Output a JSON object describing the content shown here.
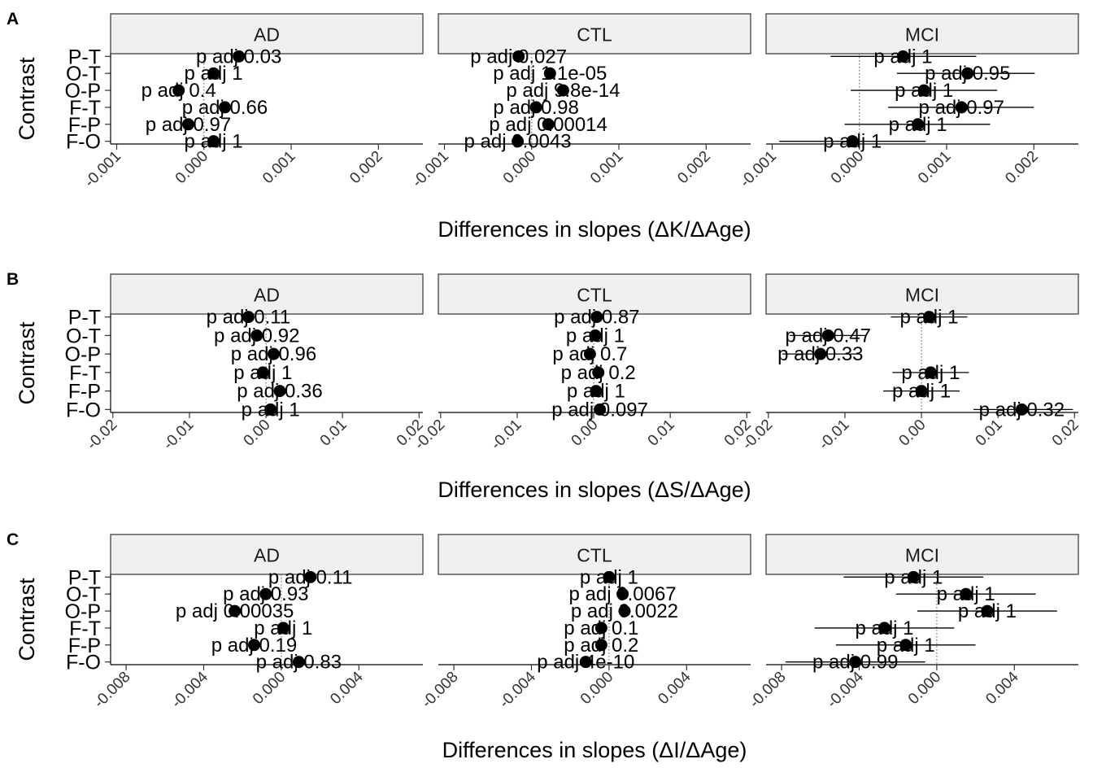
{
  "y_title": "Contrast",
  "contrasts": [
    "P-T",
    "O-T",
    "O-P",
    "F-T",
    "F-P",
    "F-O"
  ],
  "facets": [
    "AD",
    "CTL",
    "MCI"
  ],
  "chart_data": [
    {
      "panel_label": "A",
      "type": "scatter",
      "xlabel": "Differences in slopes (ΔK/ΔAge)",
      "xlim": [
        -0.00107,
        0.00251
      ],
      "xticks": [
        -0.001,
        0.0,
        0.001,
        0.002
      ],
      "xtick_labels": [
        "-0.001",
        "0.000",
        "0.001",
        "0.002"
      ],
      "facets": [
        {
          "name": "AD",
          "points": [
            {
              "contrast": "P-T",
              "x": 0.0004,
              "lo": null,
              "hi": null,
              "label": "p adj 0.03"
            },
            {
              "contrast": "O-T",
              "x": 0.00011,
              "lo": null,
              "hi": null,
              "label": "p adj 1"
            },
            {
              "contrast": "O-P",
              "x": -0.00029,
              "lo": null,
              "hi": null,
              "label": "p adj 0.4"
            },
            {
              "contrast": "F-T",
              "x": 0.00024,
              "lo": null,
              "hi": null,
              "label": "p adj 0.66"
            },
            {
              "contrast": "F-P",
              "x": -0.00018,
              "lo": null,
              "hi": null,
              "label": "p adj 0.97"
            },
            {
              "contrast": "F-O",
              "x": 0.00011,
              "lo": null,
              "hi": null,
              "label": "p adj 1"
            }
          ]
        },
        {
          "name": "CTL",
          "points": [
            {
              "contrast": "P-T",
              "x": -0.00015,
              "lo": null,
              "hi": null,
              "label": "p adj 0.027"
            },
            {
              "contrast": "O-T",
              "x": 0.00021,
              "lo": null,
              "hi": null,
              "label": "p adj 1.1e-05"
            },
            {
              "contrast": "O-P",
              "x": 0.00036,
              "lo": null,
              "hi": null,
              "label": "p adj 9.8e-14"
            },
            {
              "contrast": "F-T",
              "x": 5e-05,
              "lo": null,
              "hi": null,
              "label": "p adj 0.98"
            },
            {
              "contrast": "F-P",
              "x": 0.00019,
              "lo": null,
              "hi": null,
              "label": "p adj 0.00014"
            },
            {
              "contrast": "F-O",
              "x": -0.00016,
              "lo": null,
              "hi": null,
              "label": "p adj 0.0043"
            }
          ]
        },
        {
          "name": "MCI",
          "points": [
            {
              "contrast": "P-T",
              "x": 0.0005,
              "lo": -0.00033,
              "hi": 0.00134,
              "label": "p adj 1"
            },
            {
              "contrast": "O-T",
              "x": 0.00124,
              "lo": 0.00043,
              "hi": 0.00201,
              "label": "p adj 0.95"
            },
            {
              "contrast": "O-P",
              "x": 0.00074,
              "lo": -0.0001,
              "hi": 0.00158,
              "label": "p adj 1"
            },
            {
              "contrast": "F-T",
              "x": 0.00117,
              "lo": 0.00033,
              "hi": 0.002,
              "label": "p adj 0.97"
            },
            {
              "contrast": "F-P",
              "x": 0.00067,
              "lo": -0.00017,
              "hi": 0.0015,
              "label": "p adj 1"
            },
            {
              "contrast": "F-O",
              "x": -8e-05,
              "lo": -0.00092,
              "hi": 0.00076,
              "label": "p adj 1"
            }
          ]
        }
      ]
    },
    {
      "panel_label": "B",
      "type": "scatter",
      "xlabel": "Differences in slopes (ΔS/ΔAge)",
      "xlim": [
        -0.0203,
        0.0205
      ],
      "xticks": [
        -0.02,
        -0.01,
        0.0,
        0.01,
        0.02
      ],
      "xtick_labels": [
        "-0.02",
        "-0.01",
        "0.00",
        "0.01",
        "0.02"
      ],
      "facets": [
        {
          "name": "AD",
          "points": [
            {
              "contrast": "P-T",
              "x": -0.0023,
              "lo": null,
              "hi": null,
              "label": "p adj 0.11"
            },
            {
              "contrast": "O-T",
              "x": -0.0012,
              "lo": null,
              "hi": null,
              "label": "p adj 0.92"
            },
            {
              "contrast": "O-P",
              "x": 0.001,
              "lo": null,
              "hi": null,
              "label": "p adj 0.96"
            },
            {
              "contrast": "F-T",
              "x": -0.0004,
              "lo": null,
              "hi": null,
              "label": "p adj 1"
            },
            {
              "contrast": "F-P",
              "x": 0.0018,
              "lo": null,
              "hi": null,
              "label": "p adj 0.36"
            },
            {
              "contrast": "F-O",
              "x": 0.0006,
              "lo": null,
              "hi": null,
              "label": "p adj 1"
            }
          ]
        },
        {
          "name": "CTL",
          "points": [
            {
              "contrast": "P-T",
              "x": 0.0004,
              "lo": null,
              "hi": null,
              "label": "p adj 0.87"
            },
            {
              "contrast": "O-T",
              "x": 0.0002,
              "lo": null,
              "hi": null,
              "label": "p adj 1"
            },
            {
              "contrast": "O-P",
              "x": -0.0005,
              "lo": null,
              "hi": null,
              "label": "p adj 0.7"
            },
            {
              "contrast": "F-T",
              "x": 0.0006,
              "lo": null,
              "hi": null,
              "label": "p adj 0.2"
            },
            {
              "contrast": "F-P",
              "x": 0.0003,
              "lo": null,
              "hi": null,
              "label": "p adj 1"
            },
            {
              "contrast": "F-O",
              "x": 0.0008,
              "lo": null,
              "hi": null,
              "label": "p adj 0.097"
            }
          ]
        },
        {
          "name": "MCI",
          "points": [
            {
              "contrast": "P-T",
              "x": 0.001,
              "lo": -0.004,
              "hi": 0.006,
              "label": "p adj 1"
            },
            {
              "contrast": "O-T",
              "x": -0.0122,
              "lo": -0.0172,
              "hi": -0.0072,
              "label": "p adj 0.47"
            },
            {
              "contrast": "O-P",
              "x": -0.0132,
              "lo": -0.0182,
              "hi": -0.0082,
              "label": "p adj 0.33"
            },
            {
              "contrast": "F-T",
              "x": 0.0012,
              "lo": -0.0038,
              "hi": 0.0062,
              "label": "p adj 1"
            },
            {
              "contrast": "F-P",
              "x": 0.0,
              "lo": -0.005,
              "hi": 0.005,
              "label": "p adj 1"
            },
            {
              "contrast": "F-O",
              "x": 0.0131,
              "lo": 0.0068,
              "hi": 0.0198,
              "label": "p adj 0.32"
            }
          ]
        }
      ]
    },
    {
      "panel_label": "C",
      "type": "scatter",
      "xlabel": "Differences in slopes (ΔI/ΔAge)",
      "xlim": [
        -0.0088,
        0.0073
      ],
      "xticks": [
        -0.008,
        -0.004,
        0.0,
        0.004
      ],
      "xtick_labels": [
        "-0.008",
        "-0.004",
        "0.000",
        "0.004"
      ],
      "facets": [
        {
          "name": "AD",
          "points": [
            {
              "contrast": "P-T",
              "x": 0.0015,
              "lo": null,
              "hi": null,
              "label": "p adj 0.11"
            },
            {
              "contrast": "O-T",
              "x": -0.0008,
              "lo": null,
              "hi": null,
              "label": "p adj 0.93"
            },
            {
              "contrast": "O-P",
              "x": -0.0024,
              "lo": null,
              "hi": null,
              "label": "p adj 0.00035"
            },
            {
              "contrast": "F-T",
              "x": 0.0001,
              "lo": null,
              "hi": null,
              "label": "p adj 1"
            },
            {
              "contrast": "F-P",
              "x": -0.0014,
              "lo": null,
              "hi": null,
              "label": "p adj 0.19"
            },
            {
              "contrast": "F-O",
              "x": 0.0009,
              "lo": null,
              "hi": null,
              "label": "p adj 0.83"
            }
          ]
        },
        {
          "name": "CTL",
          "points": [
            {
              "contrast": "P-T",
              "x": 0.0,
              "lo": null,
              "hi": null,
              "label": "p adj 1"
            },
            {
              "contrast": "O-T",
              "x": 0.0007,
              "lo": null,
              "hi": null,
              "label": "p adj 0.0067"
            },
            {
              "contrast": "O-P",
              "x": 0.0008,
              "lo": null,
              "hi": null,
              "label": "p adj 0.0022"
            },
            {
              "contrast": "F-T",
              "x": -0.0004,
              "lo": null,
              "hi": null,
              "label": "p adj 0.1"
            },
            {
              "contrast": "F-P",
              "x": -0.0004,
              "lo": null,
              "hi": null,
              "label": "p adj 0.2"
            },
            {
              "contrast": "F-O",
              "x": -0.0012,
              "lo": null,
              "hi": null,
              "label": "p adj 4e-10"
            }
          ]
        },
        {
          "name": "MCI",
          "points": [
            {
              "contrast": "P-T",
              "x": -0.0012,
              "lo": -0.0048,
              "hi": 0.0024,
              "label": "p adj 1"
            },
            {
              "contrast": "O-T",
              "x": 0.0015,
              "lo": -0.0021,
              "hi": 0.0051,
              "label": "p adj 1"
            },
            {
              "contrast": "O-P",
              "x": 0.0026,
              "lo": -0.001,
              "hi": 0.0062,
              "label": "p adj 1"
            },
            {
              "contrast": "F-T",
              "x": -0.0027,
              "lo": -0.0063,
              "hi": 0.0009,
              "label": "p adj 1"
            },
            {
              "contrast": "F-P",
              "x": -0.0016,
              "lo": -0.0052,
              "hi": 0.002,
              "label": "p adj 1"
            },
            {
              "contrast": "F-O",
              "x": -0.0042,
              "lo": -0.0078,
              "hi": -0.0006,
              "label": "p adj 0.99"
            }
          ]
        }
      ]
    }
  ]
}
